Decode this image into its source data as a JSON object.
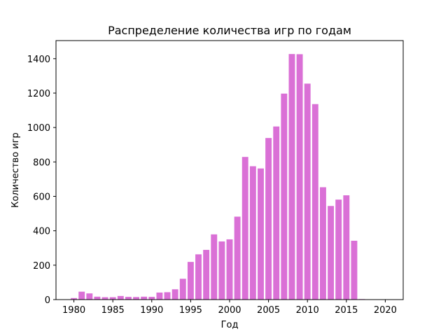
{
  "chart_data": {
    "type": "bar",
    "title": "Распределение количества игр по годам",
    "xlabel": "Год",
    "ylabel": "Количество игр",
    "bar_color": "#da70d6",
    "xlim": [
      1977.7,
      2022.3
    ],
    "ylim": [
      0,
      1505
    ],
    "x_ticks": [
      1980,
      1985,
      1990,
      1995,
      2000,
      2005,
      2010,
      2015,
      2020
    ],
    "y_ticks": [
      0,
      200,
      400,
      600,
      800,
      1000,
      1200,
      1400
    ],
    "grid": false,
    "x": [
      1980,
      1981,
      1982,
      1983,
      1984,
      1985,
      1986,
      1987,
      1988,
      1989,
      1990,
      1991,
      1992,
      1993,
      1994,
      1995,
      1996,
      1997,
      1998,
      1999,
      2000,
      2001,
      2002,
      2003,
      2004,
      2005,
      2006,
      2007,
      2008,
      2009,
      2010,
      2011,
      2012,
      2013,
      2014,
      2015,
      2016,
      2017
    ],
    "values": [
      9,
      46,
      36,
      17,
      14,
      14,
      21,
      16,
      15,
      17,
      16,
      41,
      43,
      60,
      121,
      219,
      263,
      289,
      379,
      338,
      350,
      482,
      829,
      775,
      762,
      939,
      1006,
      1197,
      1427,
      1426,
      1255,
      1136,
      653,
      544,
      581,
      606,
      342,
      3
    ]
  }
}
